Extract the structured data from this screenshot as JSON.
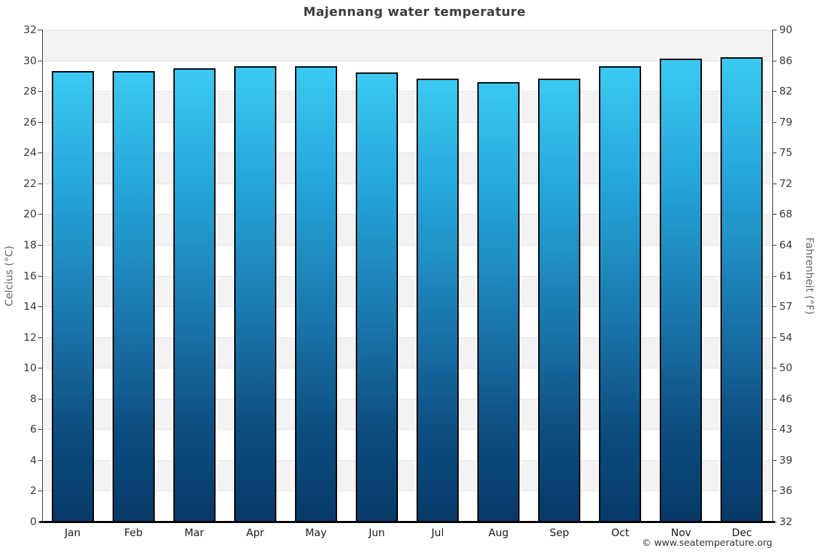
{
  "title": "Majennang water temperature",
  "footer": "© www.seatemperature.org",
  "chart_data": {
    "type": "bar",
    "title": "Majennang water temperature",
    "categories": [
      "Jan",
      "Feb",
      "Mar",
      "Apr",
      "May",
      "Jun",
      "Jul",
      "Aug",
      "Sep",
      "Oct",
      "Nov",
      "Dec"
    ],
    "values": [
      29.3,
      29.3,
      29.5,
      29.6,
      29.6,
      29.2,
      28.8,
      28.6,
      28.8,
      29.6,
      30.1,
      30.2
    ],
    "unit": "°C",
    "ylabel_left": "Celcius (°C)",
    "ylabel_right": "Fahrenheit (°F)",
    "ylim": [
      0,
      32
    ],
    "yticks_celsius": [
      0,
      2,
      4,
      6,
      8,
      10,
      12,
      14,
      16,
      18,
      20,
      22,
      24,
      26,
      28,
      30,
      32
    ],
    "yticks_fahrenheit": [
      32,
      36,
      39,
      43,
      46,
      50,
      54,
      57,
      61,
      64,
      68,
      72,
      75,
      79,
      82,
      86,
      90
    ],
    "grid": "horizontal gridline every 2°C with alternating gray/white bands",
    "legend": "none",
    "colors": {
      "bar_gradient_top": "#3bc9f3",
      "bar_gradient_bottom": "#063a67",
      "bar_border": "#000000",
      "band_gray": "#f3f3f3",
      "band_white": "#ffffff",
      "gridline": "#e4e4e4",
      "axis_line": "#333333",
      "bottom_axis": "#000000",
      "title_text": "#3d3d3d",
      "tick_text": "#3a3a3a",
      "axis_label_text": "#666666"
    }
  }
}
